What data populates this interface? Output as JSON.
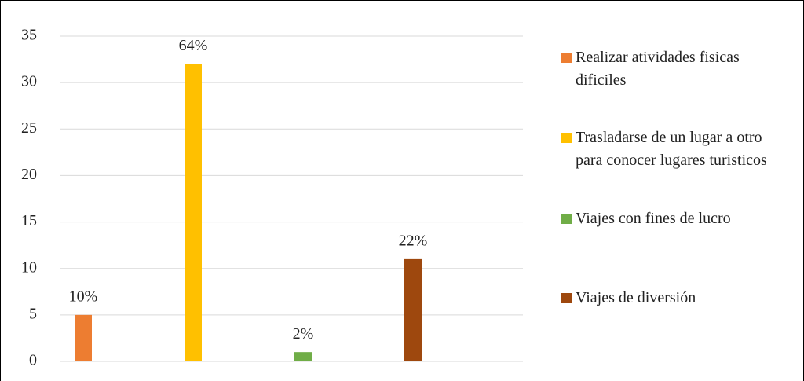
{
  "chart_data": {
    "type": "bar",
    "categories": [
      null
    ],
    "series": [
      {
        "name": "Realizar atividades fisicas dificiles",
        "color": "#ed7d31",
        "values": [
          5
        ],
        "value_labels": [
          "10%"
        ]
      },
      {
        "name": "Trasladarse de un lugar a otro para conocer lugares turisticos",
        "color": "#ffc000",
        "values": [
          32
        ],
        "value_labels": [
          "64%"
        ]
      },
      {
        "name": "Viajes con fines de lucro",
        "color": "#70ad47",
        "values": [
          1
        ],
        "value_labels": [
          "2%"
        ]
      },
      {
        "name": "Viajes de diversión",
        "color": "#9e480e",
        "values": [
          11
        ],
        "value_labels": [
          "22%"
        ]
      }
    ],
    "ylim": [
      0,
      35
    ],
    "yticks": [
      0,
      5,
      10,
      15,
      20,
      25,
      30,
      35
    ],
    "grid": true,
    "legend": "right"
  }
}
